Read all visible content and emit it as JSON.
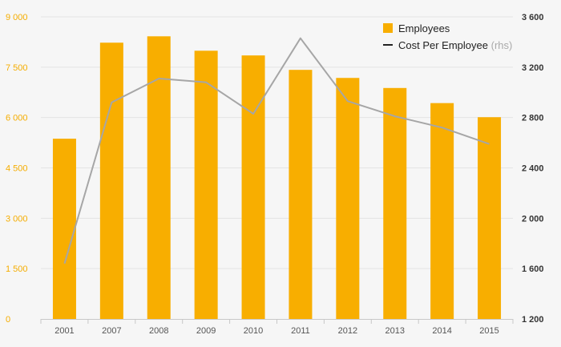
{
  "chart_data": {
    "type": "bar",
    "categories": [
      "2001",
      "2007",
      "2008",
      "2009",
      "2010",
      "2011",
      "2012",
      "2013",
      "2014",
      "2015"
    ],
    "series": [
      {
        "name": "Employees",
        "type": "bar",
        "axis": "left",
        "color": "#f8ae00",
        "values": [
          5370,
          8230,
          8420,
          7990,
          7850,
          7420,
          7180,
          6880,
          6430,
          6010
        ]
      },
      {
        "name": "Cost Per Employee",
        "axis_note": "(rhs)",
        "type": "line",
        "axis": "right",
        "color": "#a6a6a6",
        "values": [
          1640,
          2920,
          3110,
          3080,
          2830,
          3430,
          2930,
          2810,
          2720,
          2590
        ]
      }
    ],
    "y_left": {
      "ylim": [
        0,
        9000
      ],
      "ticks": [
        0,
        1500,
        3000,
        4500,
        6000,
        7500,
        9000
      ],
      "tick_labels": [
        "0",
        "1 500",
        "3 000",
        "4 500",
        "6 000",
        "7 500",
        "9 000"
      ],
      "color": "#f5ad00"
    },
    "y_right": {
      "ylim": [
        1200,
        3600
      ],
      "ticks": [
        1200,
        1600,
        2000,
        2400,
        2800,
        3200,
        3600
      ],
      "tick_labels": [
        "1 200",
        "1 600",
        "2 000",
        "2 400",
        "2 800",
        "3 200",
        "3 600"
      ],
      "color": "#333333"
    },
    "grid": true,
    "legend": {
      "position": "top-right",
      "entries": [
        {
          "label": "Employees",
          "suffix": "",
          "marker": "square",
          "color": "#f8ae00"
        },
        {
          "label": "Cost Per Employee",
          "suffix": "(rhs)",
          "marker": "line",
          "color": "#222222"
        }
      ]
    },
    "title": "",
    "xlabel": "",
    "ylabel": ""
  }
}
